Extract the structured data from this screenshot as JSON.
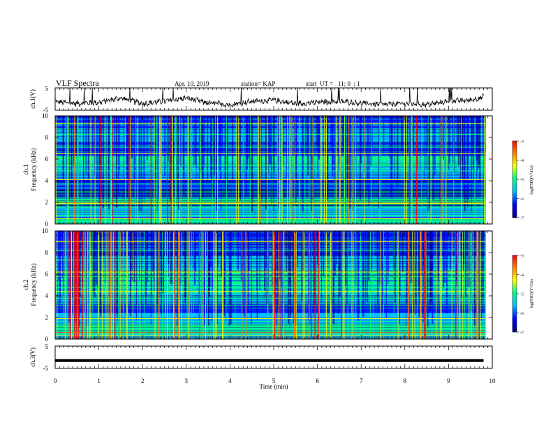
{
  "header": {
    "title": "VLF Spectra",
    "date": "Apr. 10, 2019",
    "station": "station= KAP",
    "start": "start  UT =   11: 0  : 1"
  },
  "colors": {
    "cmap": [
      "#000080",
      "#0000ff",
      "#00bfff",
      "#00ff7f",
      "#ffff00",
      "#ff7f00",
      "#ff0000"
    ],
    "trace": "#000000"
  },
  "chart_data": [
    {
      "type": "line",
      "name": "ch1-waveform",
      "ylabel": "ch.1(V)",
      "ylim": [
        -5,
        5
      ],
      "yticks": [
        "5",
        "-5"
      ],
      "xlim": [
        0,
        10
      ],
      "trace_description_values": {
        "x": [
          0,
          0.5,
          1,
          1.5,
          2,
          2.5,
          3,
          3.5,
          4,
          4.5,
          5,
          5.5,
          6,
          6.5,
          7,
          7.5,
          8,
          8.5,
          9,
          9.5,
          9.8
        ],
        "y": [
          -1.2,
          -2,
          -1.5,
          0.5,
          -2,
          -1,
          0.5,
          -1.8,
          -2.5,
          -1,
          -0.5,
          -2,
          -1.5,
          -1,
          -1.8,
          -2.5,
          -2,
          -2.5,
          -1,
          -0.5,
          1
        ]
      }
    },
    {
      "type": "heatmap",
      "name": "ch1-spectrogram",
      "ylabel": "ch.1\nFrequency (kHz)",
      "ylim": [
        0,
        10
      ],
      "yticks": [
        "0",
        "2",
        "4",
        "6",
        "8",
        "10"
      ],
      "xlim": [
        0,
        10
      ],
      "colorbar": {
        "label": "log(PSD)(V²/Hz)",
        "range": [
          -7,
          -3
        ],
        "ticks": [
          "-3",
          "-4",
          "-5",
          "-6",
          "-7"
        ]
      }
    },
    {
      "type": "heatmap",
      "name": "ch2-spectrogram",
      "ylabel": "ch.2\nFrequency (kHz)",
      "ylim": [
        0,
        10
      ],
      "yticks": [
        "0",
        "2",
        "4",
        "6",
        "8",
        "10"
      ],
      "xlim": [
        0,
        10
      ],
      "colorbar": {
        "label": "log(PSD)(V²/Hz)",
        "range": [
          -7,
          -3
        ],
        "ticks": [
          "-3",
          "-4",
          "-5",
          "-6",
          "-7"
        ]
      }
    },
    {
      "type": "line",
      "name": "ch3-waveform",
      "ylabel": "ch.3(V)",
      "ylim": [
        -5,
        5
      ],
      "yticks": [
        "5",
        "-5"
      ],
      "xlim": [
        0,
        10
      ],
      "trace_description_values": {
        "x": [
          0,
          9.8
        ],
        "y": [
          -1.5,
          -1.5
        ]
      },
      "xlabel": "Time  (min)",
      "xticks": [
        "0",
        "1",
        "2",
        "3",
        "4",
        "5",
        "6",
        "7",
        "8",
        "9",
        "10"
      ]
    }
  ]
}
